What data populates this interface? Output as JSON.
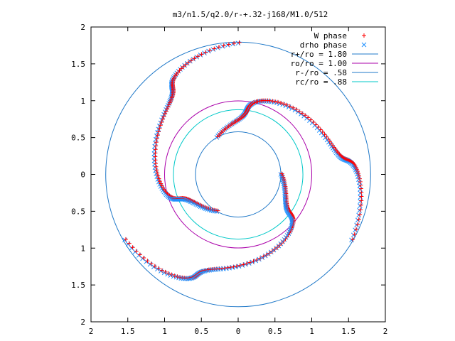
{
  "chart_data": {
    "type": "scatter",
    "title": "m3/n1.5/q2.0/r-+.32-j168/M1.0/512",
    "xlim": [
      -2,
      2
    ],
    "ylim": [
      -2,
      2
    ],
    "x_tick_labels": [
      "2",
      "1.5",
      "1",
      "0.5",
      "0",
      "0.5",
      "1",
      "1.5",
      "2"
    ],
    "y_tick_labels": [
      "2",
      "1.5",
      "1",
      "0.5",
      "0",
      "0.5",
      "1",
      "1.5",
      "2"
    ],
    "x_tick_values": [
      -2,
      -1.5,
      -1,
      -0.5,
      0,
      0.5,
      1,
      1.5,
      2
    ],
    "y_tick_values": [
      2,
      1.5,
      1,
      0.5,
      0,
      -0.5,
      -1,
      -1.5,
      -2
    ],
    "grid": false,
    "legend_position": "top-right",
    "series": [
      {
        "name": "W phase",
        "kind": "points",
        "marker": "plus",
        "color": "#ff0000"
      },
      {
        "name": "drho phase",
        "kind": "points",
        "marker": "cross",
        "color": "#1e90ff"
      },
      {
        "name": "r+/ro = 1.80",
        "kind": "circle",
        "r": 1.8,
        "color": "#1f78c8"
      },
      {
        "name": "ro/ro = 1.00",
        "kind": "circle",
        "r": 1.0,
        "color": "#aa00aa"
      },
      {
        "name": "r-/ro = .58",
        "kind": "circle",
        "r": 0.58,
        "color": "#1f78c8"
      },
      {
        "name": "rc/ro = .88",
        "kind": "circle",
        "r": 0.88,
        "color": "#00c8c8"
      }
    ],
    "phase_curve": {
      "arm_count": 3,
      "theta_start_deg": 90,
      "r_start": 1.78,
      "r_end": 0.58,
      "theta_span_deg": 150,
      "samples_per_arm": 120
    }
  }
}
